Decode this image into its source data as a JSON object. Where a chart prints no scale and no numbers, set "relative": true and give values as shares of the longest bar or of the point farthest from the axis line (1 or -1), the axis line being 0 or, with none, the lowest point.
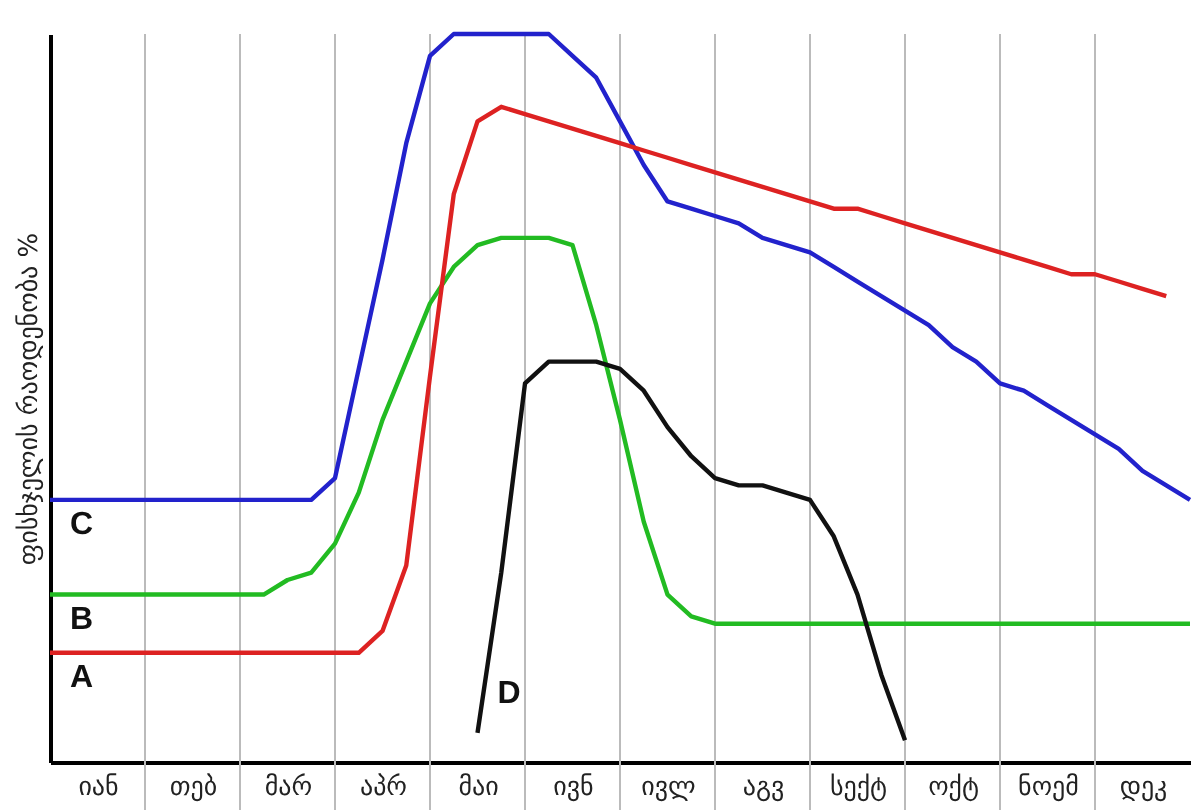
{
  "chart_data": {
    "type": "line",
    "relative": true,
    "ylabel": "ფისხჯელის რაოდენობა %",
    "categories": [
      null,
      null,
      "იან",
      null,
      null,
      null,
      "თებ",
      null,
      null,
      null,
      "მარ",
      null,
      null,
      null,
      "აპრ",
      null,
      null,
      null,
      "მაი",
      null,
      null,
      null,
      "ივნ",
      null,
      null,
      null,
      "ივლ",
      null,
      null,
      null,
      "აგვ",
      null,
      null,
      null,
      "სექტ",
      null,
      null,
      null,
      "ოქტ",
      null,
      null,
      null,
      "ნოემ",
      null,
      null,
      null,
      "დეკ",
      null,
      null
    ],
    "grid": "x",
    "marker": "none",
    "line_style": "solid",
    "series": [
      {
        "name": "C",
        "color": "#2222cc",
        "values": [
          0.36,
          0.36,
          0.36,
          0.36,
          0.36,
          0.36,
          0.36,
          0.36,
          0.36,
          0.36,
          0.36,
          0.36,
          0.39,
          0.54,
          0.69,
          0.85,
          0.97,
          1.0,
          1.0,
          1.0,
          1.0,
          1.0,
          0.97,
          0.94,
          0.88,
          0.82,
          0.77,
          0.76,
          0.75,
          0.74,
          0.72,
          0.71,
          0.7,
          0.68,
          0.66,
          0.64,
          0.62,
          0.6,
          0.57,
          0.55,
          0.52,
          0.51,
          0.49,
          0.47,
          0.45,
          0.43,
          0.4,
          0.38,
          0.36
        ]
      },
      {
        "name": "B",
        "color": "#22bb22",
        "values": [
          0.23,
          0.23,
          0.23,
          0.23,
          0.23,
          0.23,
          0.23,
          0.23,
          0.23,
          0.23,
          0.25,
          0.26,
          0.3,
          0.37,
          0.47,
          0.55,
          0.63,
          0.68,
          0.71,
          0.72,
          0.72,
          0.72,
          0.71,
          0.6,
          0.47,
          0.33,
          0.23,
          0.2,
          0.19,
          0.19,
          0.19,
          0.19,
          0.19,
          0.19,
          0.19,
          0.19,
          0.19,
          0.19,
          0.19,
          0.19,
          0.19,
          0.19,
          0.19,
          0.19,
          0.19,
          0.19,
          0.19,
          0.19,
          0.19
        ]
      },
      {
        "name": "A",
        "color": "#dd2222",
        "values": [
          0.15,
          0.15,
          0.15,
          0.15,
          0.15,
          0.15,
          0.15,
          0.15,
          0.15,
          0.15,
          0.15,
          0.15,
          0.15,
          0.15,
          0.18,
          0.27,
          0.53,
          0.78,
          0.88,
          0.9,
          0.89,
          0.88,
          0.87,
          0.86,
          0.85,
          0.84,
          0.83,
          0.82,
          0.81,
          0.8,
          0.79,
          0.78,
          0.77,
          0.76,
          0.76,
          0.75,
          0.74,
          0.73,
          0.72,
          0.71,
          0.7,
          0.69,
          0.68,
          0.67,
          0.67,
          0.66,
          0.65,
          0.64,
          null
        ]
      },
      {
        "name": "D",
        "color": "#111111",
        "values": [
          null,
          null,
          null,
          null,
          null,
          null,
          null,
          null,
          null,
          null,
          null,
          null,
          null,
          null,
          null,
          null,
          null,
          null,
          0.04,
          0.26,
          0.52,
          0.55,
          0.55,
          0.55,
          0.54,
          0.51,
          0.46,
          0.42,
          0.39,
          0.38,
          0.38,
          0.37,
          0.36,
          0.31,
          0.23,
          0.12,
          0.03,
          null,
          null,
          null,
          null,
          null,
          null,
          null,
          null,
          null,
          null,
          null,
          null
        ]
      }
    ]
  }
}
